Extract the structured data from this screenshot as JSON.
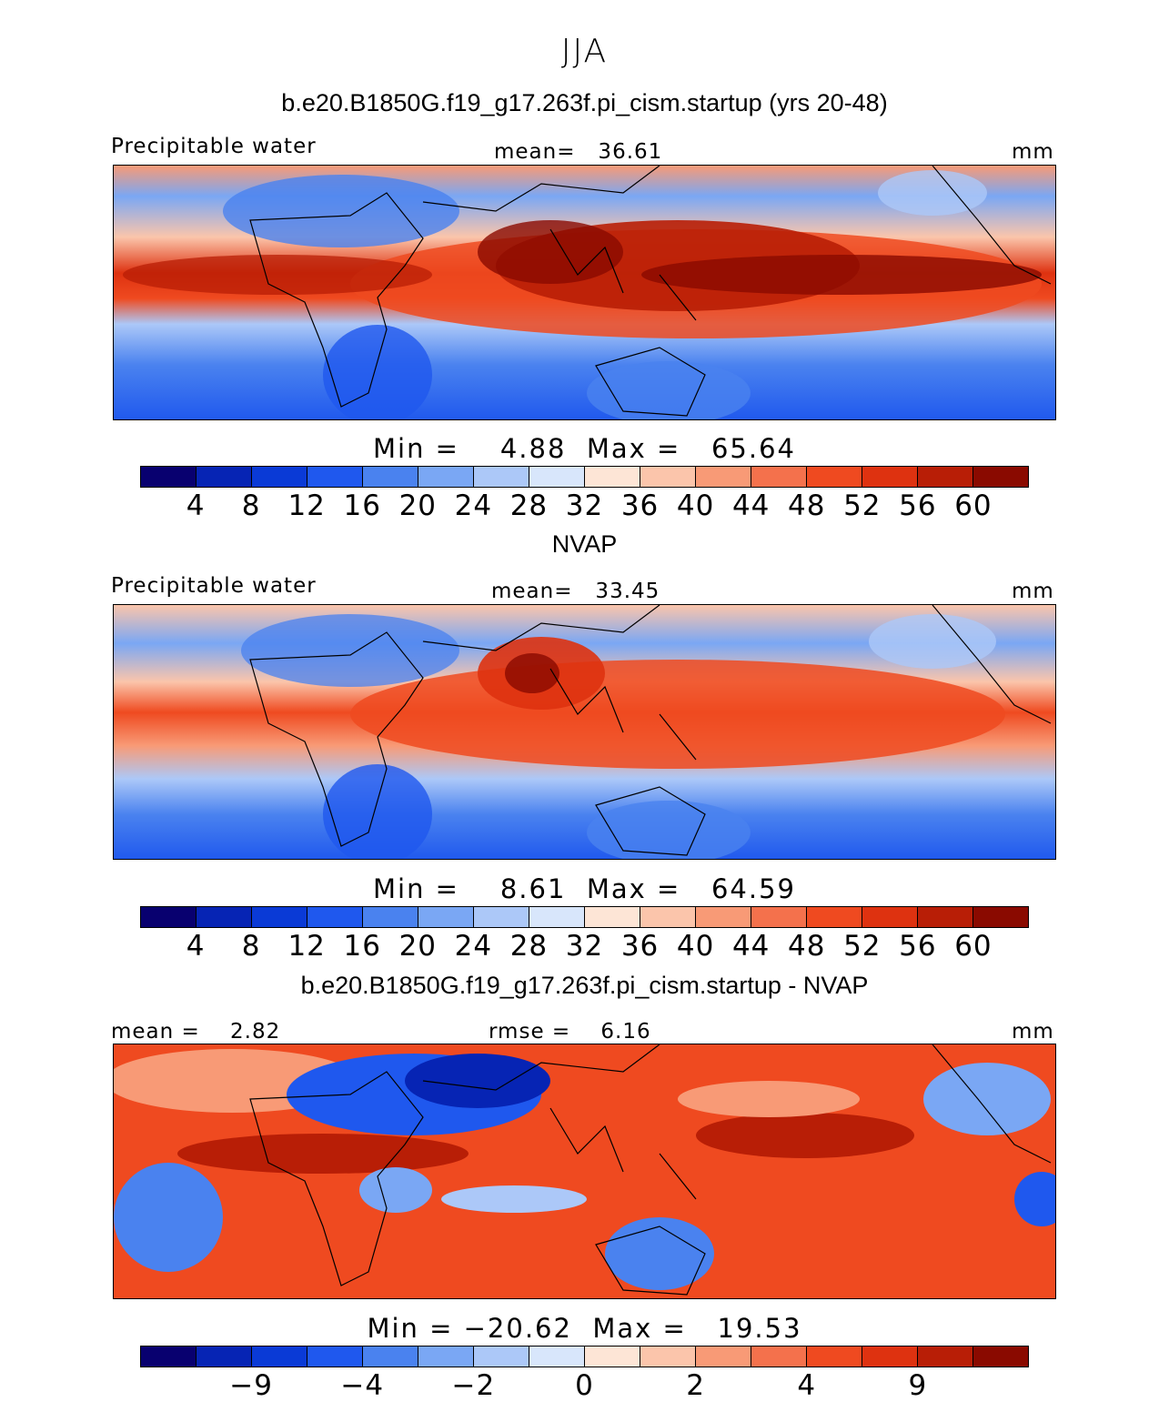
{
  "figure": {
    "season": "JJA",
    "case_title": "b.e20.B1850G.f19_g17.263f.pi_cism.startup (yrs 20-48)",
    "obs_title": "NVAP",
    "diff_title": "b.e20.B1850G.f19_g17.263f.pi_cism.startup - NVAP"
  },
  "panels": [
    {
      "left_label": "Precipitable water",
      "center_label": "mean=   36.61",
      "right_label": "mm",
      "minmax": "Min =    4.88  Max =   65.64",
      "colorbar_ticks": [
        "4",
        "8",
        "12",
        "16",
        "20",
        "24",
        "28",
        "32",
        "36",
        "40",
        "44",
        "48",
        "52",
        "56",
        "60"
      ]
    },
    {
      "left_label": "Precipitable water",
      "center_label": "mean=   33.45",
      "right_label": "mm",
      "minmax": "Min =    8.61  Max =   64.59",
      "colorbar_ticks": [
        "4",
        "8",
        "12",
        "16",
        "20",
        "24",
        "28",
        "32",
        "36",
        "40",
        "44",
        "48",
        "52",
        "56",
        "60"
      ]
    },
    {
      "left_label": "mean =    2.82",
      "center_label": "rmse =    6.16",
      "right_label": "mm",
      "minmax": "Min = −20.62  Max =   19.53",
      "colorbar_ticks": [
        "−9",
        "−4",
        "−2",
        "0",
        "2",
        "4",
        "9"
      ]
    }
  ],
  "colors": {
    "palette": [
      "#08006f",
      "#0624b4",
      "#0a3ad6",
      "#1f58ee",
      "#4a82ef",
      "#7aa7f4",
      "#acc8f8",
      "#d8e6fb",
      "#fde5d6",
      "#fbc5ab",
      "#f89a76",
      "#f4714c",
      "#ef4a20",
      "#de3210",
      "#b81e06",
      "#8a0a00"
    ]
  }
}
